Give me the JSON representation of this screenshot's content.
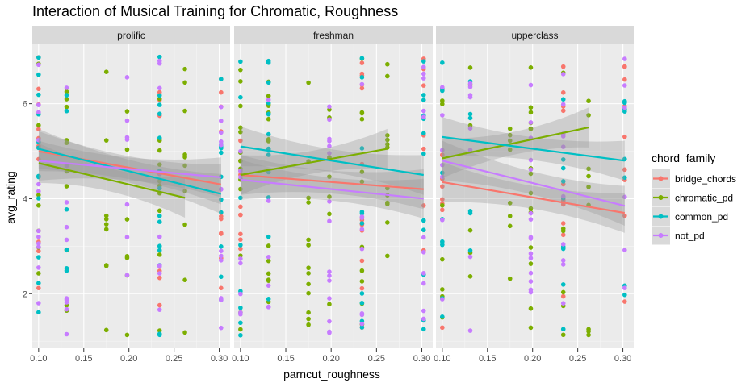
{
  "chart_data": {
    "type": "scatter",
    "title": "Interaction of Musical Training for Chromatic, Roughness",
    "xlabel": "parncut_roughness",
    "ylabel": "avg_rating",
    "xlim": [
      0.093,
      0.312
    ],
    "ylim": [
      0.85,
      7.25
    ],
    "x_ticks": [
      0.1,
      0.15,
      0.2,
      0.25,
      0.3
    ],
    "x_tick_labels": [
      "0.10",
      "0.15",
      "0.20",
      "0.25",
      "0.30"
    ],
    "y_ticks": [
      2,
      4,
      6
    ],
    "y_tick_labels": [
      "2",
      "4",
      "6"
    ],
    "grid": true,
    "facets": [
      "prolific",
      "freshman",
      "upperclass"
    ],
    "x_levels": [
      0.1,
      0.131,
      0.175,
      0.198,
      0.234,
      0.262,
      0.302
    ],
    "legend": {
      "title": "chord_family",
      "position": "right",
      "entries": [
        {
          "name": "bridge_chords",
          "color": "#F8766D"
        },
        {
          "name": "chromatic_pd",
          "color": "#7CAE00"
        },
        {
          "name": "common_pd",
          "color": "#00BFC4"
        },
        {
          "name": "not_pd",
          "color": "#C77CFF"
        }
      ]
    },
    "series": [
      {
        "name": "bridge_chords",
        "color": "#F8766D",
        "x_levels": [
          0,
          4,
          6
        ]
      },
      {
        "name": "chromatic_pd",
        "color": "#7CAE00",
        "x_levels": [
          0,
          1,
          2,
          3,
          4,
          5
        ]
      },
      {
        "name": "common_pd",
        "color": "#00BFC4",
        "x_levels": [
          0,
          1,
          4,
          6
        ]
      },
      {
        "name": "not_pd",
        "color": "#C77CFF",
        "x_levels": [
          0,
          1,
          3,
          4,
          6
        ]
      }
    ],
    "trend_lines": {
      "prolific": [
        {
          "series": "bridge_chords",
          "x": [
            0.1,
            0.302
          ],
          "y": [
            5.0,
            4.3
          ]
        },
        {
          "series": "chromatic_pd",
          "x": [
            0.1,
            0.262
          ],
          "y": [
            4.75,
            4.02
          ]
        },
        {
          "series": "common_pd",
          "x": [
            0.1,
            0.302
          ],
          "y": [
            5.05,
            4.1
          ]
        },
        {
          "series": "not_pd",
          "x": [
            0.1,
            0.302
          ],
          "y": [
            4.8,
            4.45
          ]
        }
      ],
      "freshman": [
        {
          "series": "bridge_chords",
          "x": [
            0.1,
            0.302
          ],
          "y": [
            4.5,
            4.2
          ]
        },
        {
          "series": "chromatic_pd",
          "x": [
            0.1,
            0.262
          ],
          "y": [
            4.5,
            5.05
          ]
        },
        {
          "series": "common_pd",
          "x": [
            0.1,
            0.302
          ],
          "y": [
            5.1,
            4.5
          ]
        },
        {
          "series": "not_pd",
          "x": [
            0.1,
            0.302
          ],
          "y": [
            4.4,
            4.0
          ]
        }
      ],
      "upperclass": [
        {
          "series": "bridge_chords",
          "x": [
            0.1,
            0.302
          ],
          "y": [
            4.35,
            3.7
          ]
        },
        {
          "series": "chromatic_pd",
          "x": [
            0.1,
            0.262
          ],
          "y": [
            4.85,
            5.5
          ]
        },
        {
          "series": "common_pd",
          "x": [
            0.1,
            0.302
          ],
          "y": [
            5.3,
            4.8
          ]
        },
        {
          "series": "not_pd",
          "x": [
            0.1,
            0.302
          ],
          "y": [
            4.8,
            3.85
          ]
        }
      ]
    },
    "confidence_band": true
  }
}
